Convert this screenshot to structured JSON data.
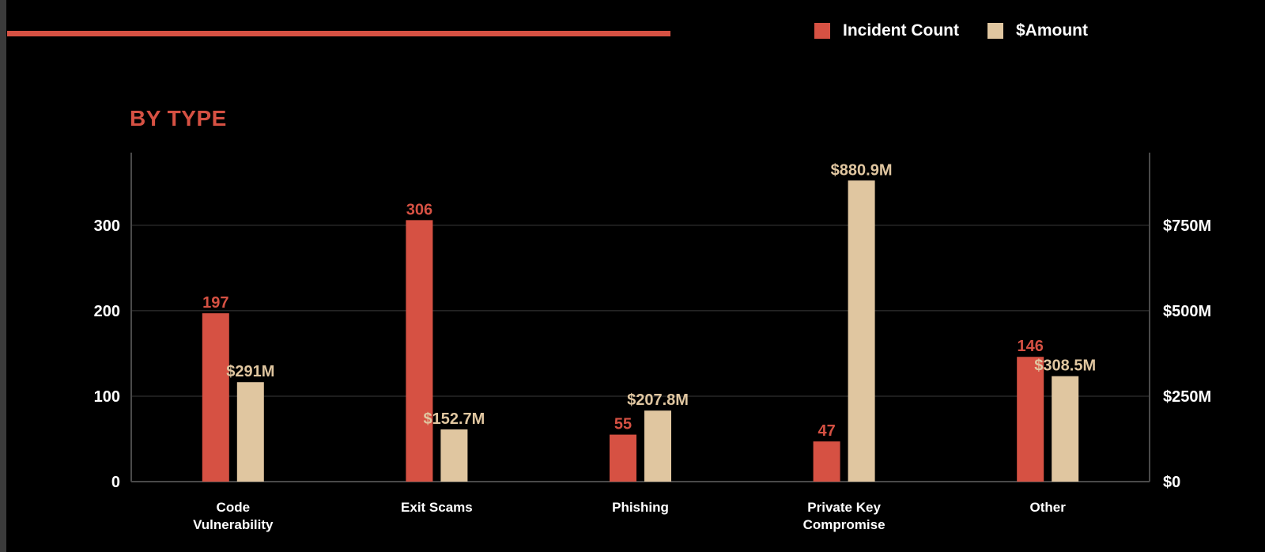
{
  "colors": {
    "background": "#000000",
    "accent": "#d65143",
    "incident": "#d65143",
    "amount": "#e0c6a0",
    "text": "#ffffff",
    "grid": "#3a3a3a",
    "axis": "#4a4a4a"
  },
  "legend": {
    "incident_label": "Incident Count",
    "amount_label": "$Amount"
  },
  "chart_data": {
    "type": "bar",
    "title": "BY TYPE",
    "categories": [
      [
        "Code",
        "Vulnerability"
      ],
      [
        "Exit Scams"
      ],
      [
        "Phishing"
      ],
      [
        "Private Key",
        "Compromise"
      ],
      [
        "Other"
      ]
    ],
    "series": [
      {
        "name": "Incident Count",
        "axis": "left",
        "values": [
          197,
          306,
          55,
          47,
          146
        ],
        "labels": [
          "197",
          "306",
          "55",
          "47",
          "146"
        ]
      },
      {
        "name": "$Amount",
        "axis": "right",
        "values": [
          291,
          152.7,
          207.8,
          880.9,
          308.5
        ],
        "labels": [
          "$291M",
          "$152.7M",
          "$207.8M",
          "$880.9M",
          "$308.5M"
        ]
      }
    ],
    "y_left": {
      "ylim": [
        0,
        385
      ],
      "ticks": [
        0,
        100,
        200,
        300
      ],
      "tick_labels": [
        "0",
        "100",
        "200",
        "300"
      ]
    },
    "y_right": {
      "ylim": [
        0,
        962.5
      ],
      "unit": "$M",
      "ticks": [
        0,
        250,
        500,
        750
      ],
      "tick_labels": [
        "$0",
        "$250M",
        "$500M",
        "$750M"
      ]
    },
    "grid": true,
    "legend_position": "top-right"
  }
}
